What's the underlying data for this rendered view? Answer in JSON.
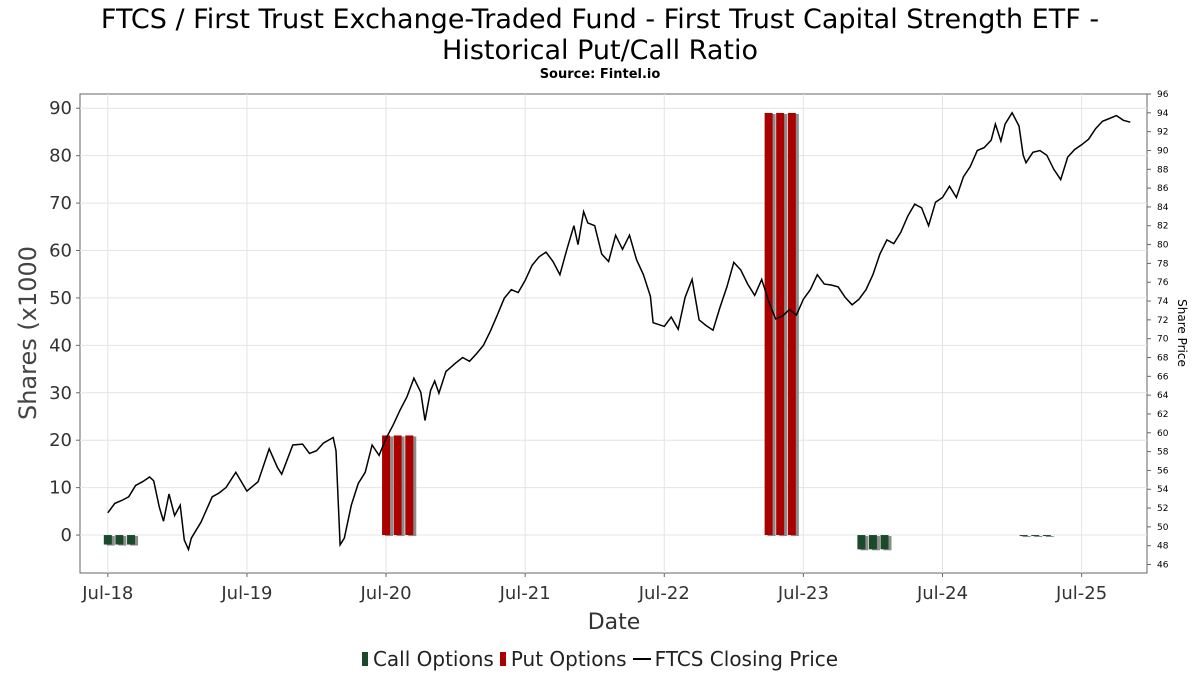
{
  "chart_data": {
    "type": "bar",
    "title_line1": "FTCS / First Trust Exchange-Traded Fund - First Trust Capital Strength ETF -",
    "title_line2": "Historical Put/Call Ratio",
    "subtitle": "Source: Fintel.io",
    "xlabel": "Date",
    "ylabel": "Shares (x1000",
    "y2label": "Share Price",
    "ylim": [
      -8,
      93
    ],
    "y2lim": [
      45.1,
      96
    ],
    "xlim": [
      2018.3,
      2025.97
    ],
    "yticks": [
      0,
      10,
      20,
      30,
      40,
      50,
      60,
      70,
      80,
      90
    ],
    "y2ticks": [
      46,
      48,
      50,
      52,
      54,
      56,
      58,
      60,
      62,
      64,
      66,
      68,
      70,
      72,
      74,
      76,
      78,
      80,
      82,
      84,
      86,
      88,
      90,
      92,
      94,
      96
    ],
    "xticks": [
      {
        "label": "Jul-18",
        "x": 2018.5
      },
      {
        "label": "Jul-19",
        "x": 2019.5
      },
      {
        "label": "Jul-20",
        "x": 2020.5
      },
      {
        "label": "Jul-21",
        "x": 2021.5
      },
      {
        "label": "Jul-22",
        "x": 2022.5
      },
      {
        "label": "Jul-23",
        "x": 2023.5
      },
      {
        "label": "Jul-24",
        "x": 2024.5
      },
      {
        "label": "Jul-25",
        "x": 2025.5
      }
    ],
    "grid": true,
    "legend_position": "bottom",
    "legend": [
      "Call Options",
      "Put Options",
      "FTCS Closing Price"
    ],
    "colors": {
      "call": "#1a4a2a",
      "put": "#aa0000",
      "price": "#000000",
      "shadow": "#8c8c8c",
      "grid": "#e4e4e4"
    },
    "call_bars": [
      {
        "x": 2018.5,
        "value": -2
      },
      {
        "x": 2018.583,
        "value": -2
      },
      {
        "x": 2018.667,
        "value": -2
      },
      {
        "x": 2023.917,
        "value": -3
      },
      {
        "x": 2024.0,
        "value": -3
      },
      {
        "x": 2024.083,
        "value": -3
      },
      {
        "x": 2025.083,
        "value": 0
      },
      {
        "x": 2025.167,
        "value": 0
      },
      {
        "x": 2025.25,
        "value": 0
      }
    ],
    "put_bars": [
      {
        "x": 2020.5,
        "value": 21
      },
      {
        "x": 2020.583,
        "value": 21
      },
      {
        "x": 2020.667,
        "value": 21
      },
      {
        "x": 2023.25,
        "value": 89
      },
      {
        "x": 2023.333,
        "value": 89
      },
      {
        "x": 2023.417,
        "value": 89
      }
    ],
    "price_series": {
      "name": "FTCS Closing Price",
      "points": [
        [
          2018.5,
          51.5
        ],
        [
          2018.55,
          52.5
        ],
        [
          2018.6,
          52.8
        ],
        [
          2018.65,
          53.2
        ],
        [
          2018.7,
          54.4
        ],
        [
          2018.75,
          54.8
        ],
        [
          2018.8,
          55.3
        ],
        [
          2018.83,
          54.9
        ],
        [
          2018.87,
          52.1
        ],
        [
          2018.9,
          50.6
        ],
        [
          2018.94,
          53.5
        ],
        [
          2018.98,
          51.2
        ],
        [
          2019.02,
          52.3
        ],
        [
          2019.05,
          48.6
        ],
        [
          2019.08,
          47.6
        ],
        [
          2019.1,
          48.8
        ],
        [
          2019.17,
          50.5
        ],
        [
          2019.25,
          53.2
        ],
        [
          2019.3,
          53.6
        ],
        [
          2019.35,
          54.2
        ],
        [
          2019.42,
          55.8
        ],
        [
          2019.5,
          53.8
        ],
        [
          2019.58,
          54.8
        ],
        [
          2019.66,
          58.3
        ],
        [
          2019.72,
          56.3
        ],
        [
          2019.75,
          55.6
        ],
        [
          2019.83,
          58.7
        ],
        [
          2019.9,
          58.8
        ],
        [
          2019.95,
          57.8
        ],
        [
          2020.0,
          58.1
        ],
        [
          2020.05,
          58.9
        ],
        [
          2020.12,
          59.5
        ],
        [
          2020.14,
          58.1
        ],
        [
          2020.17,
          48.1
        ],
        [
          2020.2,
          48.8
        ],
        [
          2020.25,
          52.3
        ],
        [
          2020.3,
          54.6
        ],
        [
          2020.35,
          55.8
        ],
        [
          2020.4,
          58.7
        ],
        [
          2020.45,
          57.6
        ],
        [
          2020.5,
          59.4
        ],
        [
          2020.55,
          60.8
        ],
        [
          2020.6,
          62.4
        ],
        [
          2020.65,
          63.8
        ],
        [
          2020.7,
          65.8
        ],
        [
          2020.75,
          64.3
        ],
        [
          2020.78,
          61.3
        ],
        [
          2020.82,
          64.5
        ],
        [
          2020.85,
          65.5
        ],
        [
          2020.88,
          64.2
        ],
        [
          2020.93,
          66.5
        ],
        [
          2021.0,
          67.4
        ],
        [
          2021.05,
          68.0
        ],
        [
          2021.1,
          67.6
        ],
        [
          2021.15,
          68.4
        ],
        [
          2021.2,
          69.3
        ],
        [
          2021.25,
          70.8
        ],
        [
          2021.3,
          72.5
        ],
        [
          2021.35,
          74.3
        ],
        [
          2021.4,
          75.2
        ],
        [
          2021.45,
          74.9
        ],
        [
          2021.5,
          76.2
        ],
        [
          2021.55,
          77.8
        ],
        [
          2021.6,
          78.7
        ],
        [
          2021.65,
          79.2
        ],
        [
          2021.7,
          78.2
        ],
        [
          2021.75,
          76.8
        ],
        [
          2021.8,
          79.5
        ],
        [
          2021.85,
          82.0
        ],
        [
          2021.88,
          80.0
        ],
        [
          2021.92,
          83.5
        ],
        [
          2021.95,
          82.3
        ],
        [
          2022.0,
          82.0
        ],
        [
          2022.05,
          79.0
        ],
        [
          2022.1,
          78.2
        ],
        [
          2022.15,
          81.0
        ],
        [
          2022.2,
          79.5
        ],
        [
          2022.25,
          81.0
        ],
        [
          2022.3,
          78.4
        ],
        [
          2022.35,
          76.8
        ],
        [
          2022.4,
          74.5
        ],
        [
          2022.42,
          71.7
        ],
        [
          2022.5,
          71.3
        ],
        [
          2022.55,
          72.3
        ],
        [
          2022.6,
          71.0
        ],
        [
          2022.65,
          74.4
        ],
        [
          2022.7,
          76.3
        ],
        [
          2022.75,
          72.0
        ],
        [
          2022.8,
          71.4
        ],
        [
          2022.85,
          70.9
        ],
        [
          2022.9,
          73.3
        ],
        [
          2022.95,
          75.5
        ],
        [
          2023.0,
          78.1
        ],
        [
          2023.05,
          77.3
        ],
        [
          2023.1,
          75.8
        ],
        [
          2023.15,
          74.6
        ],
        [
          2023.2,
          76.3
        ],
        [
          2023.25,
          74.0
        ],
        [
          2023.3,
          72.1
        ],
        [
          2023.35,
          72.4
        ],
        [
          2023.4,
          73.1
        ],
        [
          2023.45,
          72.5
        ],
        [
          2023.5,
          74.2
        ],
        [
          2023.55,
          75.2
        ],
        [
          2023.6,
          76.8
        ],
        [
          2023.65,
          75.8
        ],
        [
          2023.7,
          75.7
        ],
        [
          2023.75,
          75.5
        ],
        [
          2023.8,
          74.4
        ],
        [
          2023.85,
          73.6
        ],
        [
          2023.9,
          74.2
        ],
        [
          2023.95,
          75.2
        ],
        [
          2024.0,
          76.8
        ],
        [
          2024.05,
          79.0
        ],
        [
          2024.1,
          80.5
        ],
        [
          2024.15,
          80.1
        ],
        [
          2024.2,
          81.3
        ],
        [
          2024.25,
          83.0
        ],
        [
          2024.3,
          84.3
        ],
        [
          2024.35,
          83.9
        ],
        [
          2024.4,
          82.0
        ],
        [
          2024.45,
          84.5
        ],
        [
          2024.5,
          85.0
        ],
        [
          2024.55,
          86.2
        ],
        [
          2024.6,
          85.0
        ],
        [
          2024.65,
          87.2
        ],
        [
          2024.7,
          88.3
        ],
        [
          2024.75,
          90.0
        ],
        [
          2024.8,
          90.3
        ],
        [
          2024.85,
          91.1
        ],
        [
          2024.88,
          92.8
        ],
        [
          2024.92,
          91.0
        ],
        [
          2024.95,
          92.8
        ],
        [
          2025.0,
          94.0
        ],
        [
          2025.05,
          92.6
        ],
        [
          2025.08,
          89.5
        ],
        [
          2025.1,
          88.7
        ],
        [
          2025.15,
          89.8
        ],
        [
          2025.2,
          90.0
        ],
        [
          2025.25,
          89.5
        ],
        [
          2025.3,
          88.0
        ],
        [
          2025.35,
          86.9
        ],
        [
          2025.4,
          89.3
        ],
        [
          2025.45,
          90.1
        ],
        [
          2025.5,
          90.6
        ],
        [
          2025.55,
          91.2
        ],
        [
          2025.6,
          92.3
        ],
        [
          2025.65,
          93.1
        ],
        [
          2025.7,
          93.4
        ],
        [
          2025.75,
          93.7
        ],
        [
          2025.8,
          93.2
        ],
        [
          2025.85,
          93.0
        ]
      ]
    }
  }
}
